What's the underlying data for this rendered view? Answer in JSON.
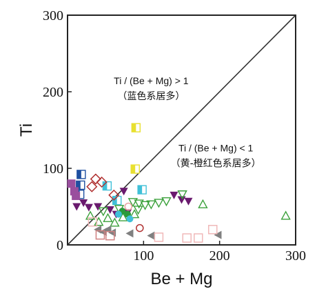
{
  "chart_data": {
    "type": "scatter",
    "title": "",
    "xlabel": "Be + Mg",
    "ylabel": "Ti",
    "xlim": [
      0,
      300
    ],
    "ylim": [
      0,
      300
    ],
    "x_ticks": [
      "100",
      "200",
      "300"
    ],
    "y_ticks": [
      "0",
      "100",
      "200",
      "300"
    ],
    "grid": false,
    "reference_line": {
      "type": "y=x",
      "x": [
        0,
        300
      ],
      "y": [
        0,
        300
      ]
    },
    "annotations": [
      {
        "line1": "Ti / (Be + Mg) > 1",
        "line2": "（蓝色系居多）",
        "anchor": [
          110,
          210
        ]
      },
      {
        "line1": "Ti / (Be + Mg) < 1",
        "line2": "（黄-橙红色系居多）",
        "anchor": [
          195,
          122
        ]
      }
    ],
    "points": [
      {
        "x": 90,
        "y": 153,
        "shape": "square-half",
        "color": "#e8e030"
      },
      {
        "x": 89,
        "y": 99,
        "shape": "square-half",
        "color": "#e8e030"
      },
      {
        "x": 18,
        "y": 92,
        "shape": "square-half",
        "color": "#1e4fa0"
      },
      {
        "x": 17,
        "y": 78,
        "shape": "square-half",
        "color": "#1e4fa0"
      },
      {
        "x": 16,
        "y": 66,
        "shape": "square-half",
        "color": "#1e4fa0"
      },
      {
        "x": 98,
        "y": 72,
        "shape": "square-half",
        "color": "#40c0d8"
      },
      {
        "x": 52,
        "y": 77,
        "shape": "square-half",
        "color": "#40c0d8"
      },
      {
        "x": 65,
        "y": 58,
        "shape": "square-half",
        "color": "#40c0d8"
      },
      {
        "x": 5,
        "y": 80,
        "shape": "square",
        "color": "#9a4f9e"
      },
      {
        "x": 9,
        "y": 70,
        "shape": "square",
        "color": "#9a4f9e"
      },
      {
        "x": 11,
        "y": 64,
        "shape": "square",
        "color": "#9a4f9e"
      },
      {
        "x": 37,
        "y": 86,
        "shape": "diamond-open",
        "color": "#b03030"
      },
      {
        "x": 45,
        "y": 82,
        "shape": "diamond-open",
        "color": "#b03030"
      },
      {
        "x": 32,
        "y": 76,
        "shape": "diamond-open",
        "color": "#b03030"
      },
      {
        "x": 61,
        "y": 65,
        "shape": "diamond-open",
        "color": "#b03030"
      },
      {
        "x": 74,
        "y": 70,
        "shape": "triangle-down",
        "color": "#6a1a6e"
      },
      {
        "x": 12,
        "y": 50,
        "shape": "triangle-down",
        "color": "#6a1a6e"
      },
      {
        "x": 21,
        "y": 55,
        "shape": "triangle-down",
        "color": "#6a1a6e"
      },
      {
        "x": 28,
        "y": 49,
        "shape": "triangle-down",
        "color": "#6a1a6e"
      },
      {
        "x": 40,
        "y": 50,
        "shape": "triangle-down",
        "color": "#6a1a6e"
      },
      {
        "x": 56,
        "y": 46,
        "shape": "triangle-down",
        "color": "#6a1a6e"
      },
      {
        "x": 64,
        "y": 40,
        "shape": "triangle-down",
        "color": "#6a1a6e"
      },
      {
        "x": 79,
        "y": 42,
        "shape": "triangle-down",
        "color": "#6a1a6e"
      },
      {
        "x": 140,
        "y": 65,
        "shape": "triangle-down",
        "color": "#6a1a6e"
      },
      {
        "x": 150,
        "y": 59,
        "shape": "triangle-down",
        "color": "#6a1a6e"
      },
      {
        "x": 159,
        "y": 57,
        "shape": "triangle-down",
        "color": "#6a1a6e"
      },
      {
        "x": 86,
        "y": 56,
        "shape": "triangle-down-open",
        "color": "#3aa03a"
      },
      {
        "x": 94,
        "y": 54,
        "shape": "triangle-down-open",
        "color": "#3aa03a"
      },
      {
        "x": 102,
        "y": 52,
        "shape": "triangle-down-open",
        "color": "#3aa03a"
      },
      {
        "x": 110,
        "y": 53,
        "shape": "triangle-down-open",
        "color": "#3aa03a"
      },
      {
        "x": 120,
        "y": 55,
        "shape": "triangle-down-open",
        "color": "#3aa03a"
      },
      {
        "x": 130,
        "y": 57,
        "shape": "triangle-down-open",
        "color": "#3aa03a"
      },
      {
        "x": 151,
        "y": 66,
        "shape": "triangle-down-open",
        "color": "#3aa03a"
      },
      {
        "x": 93,
        "y": 46,
        "shape": "triangle-down-open",
        "color": "#3aa03a"
      },
      {
        "x": 68,
        "y": 47,
        "shape": "triangle-down-open",
        "color": "#3aa03a"
      },
      {
        "x": 47,
        "y": 44,
        "shape": "triangle-down-open",
        "color": "#3aa03a"
      },
      {
        "x": 30,
        "y": 38,
        "shape": "triangle-up-open",
        "color": "#3aa03a"
      },
      {
        "x": 41,
        "y": 30,
        "shape": "triangle-up-open",
        "color": "#3aa03a"
      },
      {
        "x": 53,
        "y": 35,
        "shape": "triangle-up-open",
        "color": "#3aa03a"
      },
      {
        "x": 62,
        "y": 29,
        "shape": "triangle-up-open",
        "color": "#3aa03a"
      },
      {
        "x": 73,
        "y": 36,
        "shape": "triangle-up-open",
        "color": "#3aa03a"
      },
      {
        "x": 88,
        "y": 40,
        "shape": "triangle-up-open",
        "color": "#3aa03a"
      },
      {
        "x": 178,
        "y": 53,
        "shape": "triangle-up-open",
        "color": "#3aa03a"
      },
      {
        "x": 287,
        "y": 38,
        "shape": "triangle-up-open",
        "color": "#3aa03a"
      },
      {
        "x": 72,
        "y": 44,
        "shape": "circle",
        "color": "#2a9a3a"
      },
      {
        "x": 79,
        "y": 40,
        "shape": "circle",
        "color": "#2a9a3a"
      },
      {
        "x": 67,
        "y": 40,
        "shape": "circle",
        "color": "#40c0d8"
      },
      {
        "x": 82,
        "y": 34,
        "shape": "circle",
        "color": "#40c0d8"
      },
      {
        "x": 95,
        "y": 22,
        "shape": "circle-open",
        "color": "#b03030"
      },
      {
        "x": 80,
        "y": 50,
        "shape": "circle-open",
        "color": "#e8a0a0"
      },
      {
        "x": 40,
        "y": 20,
        "shape": "triangle-left",
        "color": "#808080"
      },
      {
        "x": 47,
        "y": 17,
        "shape": "triangle-left",
        "color": "#808080"
      },
      {
        "x": 53,
        "y": 20,
        "shape": "triangle-left",
        "color": "#808080"
      },
      {
        "x": 59,
        "y": 16,
        "shape": "triangle-left",
        "color": "#808080"
      },
      {
        "x": 82,
        "y": 15,
        "shape": "triangle-left",
        "color": "#808080"
      },
      {
        "x": 110,
        "y": 12,
        "shape": "triangle-left",
        "color": "#808080"
      },
      {
        "x": 198,
        "y": 13,
        "shape": "triangle-left",
        "color": "#808080"
      },
      {
        "x": 43,
        "y": 13,
        "shape": "square-open",
        "color": "#d08080"
      },
      {
        "x": 56,
        "y": 12,
        "shape": "square-open",
        "color": "#d08080"
      },
      {
        "x": 120,
        "y": 10,
        "shape": "square-open",
        "color": "#f0b8b8"
      },
      {
        "x": 157,
        "y": 9,
        "shape": "square-open",
        "color": "#f0b8b8"
      },
      {
        "x": 172,
        "y": 9,
        "shape": "square-open",
        "color": "#f0b8b8"
      },
      {
        "x": 191,
        "y": 20,
        "shape": "square-open",
        "color": "#f0b8b8"
      },
      {
        "x": 33,
        "y": 30,
        "shape": "square-open",
        "color": "#f0b8b8"
      }
    ]
  }
}
